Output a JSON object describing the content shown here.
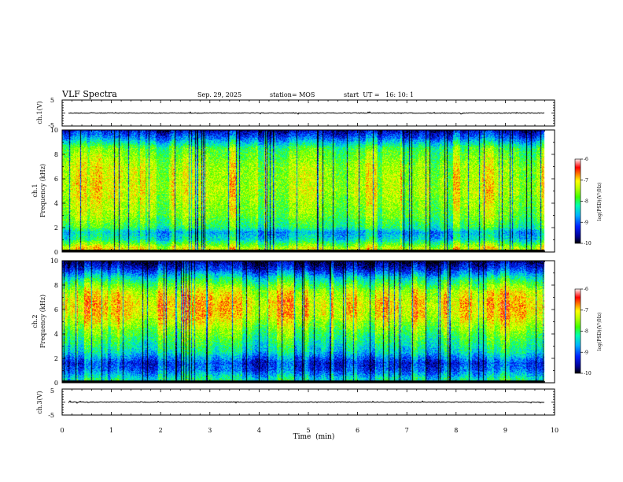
{
  "header": {
    "title": "VLF Spectra",
    "date": "Sep. 29, 2025",
    "station": "station= MOS",
    "start": "start  UT =   16: 10: 1"
  },
  "chart_data": [
    {
      "type": "line",
      "id": "ch1-waveform",
      "ylabel": "ch.1(V)",
      "ylim": [
        -5,
        5
      ],
      "yticks": [
        "5",
        "-5"
      ],
      "xlim": [
        0,
        10
      ],
      "description_values": {
        "x_end_min": 9.8,
        "mean_voltage": 0.0
      }
    },
    {
      "type": "heatmap",
      "id": "ch1-spectrogram",
      "ylabel_top": "ch.1",
      "ylabel": "Frequency  (kHz)",
      "ylim": [
        0,
        10
      ],
      "yticks": [
        "0",
        "2",
        "4",
        "6",
        "8",
        "10"
      ],
      "xlim": [
        0,
        10
      ],
      "data_x_end": 9.8,
      "colorbar": {
        "label": "log(PSD)(V²/Hz)",
        "range": [
          -10,
          -6
        ],
        "ticks": [
          "-6",
          "-7",
          "-8",
          "-9",
          "-10"
        ]
      },
      "intensity_profile_kHz_to_logPSD": [
        [
          0.3,
          -7.2
        ],
        [
          1.0,
          -8.3
        ],
        [
          1.6,
          -8.6
        ],
        [
          2.0,
          -8.0
        ],
        [
          3.0,
          -7.6
        ],
        [
          5.0,
          -7.3
        ],
        [
          7.0,
          -7.4
        ],
        [
          8.5,
          -7.8
        ],
        [
          9.3,
          -8.8
        ],
        [
          10.0,
          -9.5
        ]
      ]
    },
    {
      "type": "heatmap",
      "id": "ch2-spectrogram",
      "ylabel_top": "ch.2",
      "ylabel": "Frequency  (kHz)",
      "ylim": [
        0,
        10
      ],
      "yticks": [
        "0",
        "2",
        "4",
        "6",
        "8",
        "10"
      ],
      "xlim": [
        0,
        10
      ],
      "data_x_end": 9.8,
      "colorbar": {
        "label": "log(PSD)(V²/Hz)",
        "range": [
          -10,
          -6
        ],
        "ticks": [
          "-6",
          "-7",
          "-8",
          "-9",
          "-10"
        ]
      },
      "intensity_profile_kHz_to_logPSD": [
        [
          0.3,
          -8.3
        ],
        [
          1.0,
          -9.0
        ],
        [
          1.6,
          -9.2
        ],
        [
          2.5,
          -8.4
        ],
        [
          4.0,
          -7.8
        ],
        [
          5.5,
          -7.1
        ],
        [
          6.5,
          -7.0
        ],
        [
          7.5,
          -7.3
        ],
        [
          8.5,
          -8.2
        ],
        [
          9.3,
          -9.2
        ],
        [
          10.0,
          -9.8
        ]
      ]
    },
    {
      "type": "line",
      "id": "ch3-waveform",
      "ylabel": "ch.3(V)",
      "ylim": [
        -5,
        5
      ],
      "yticks": [
        "5",
        "-5"
      ],
      "xlim": [
        0,
        10
      ],
      "description_values": {
        "x_end_min": 9.8,
        "mean_voltage": 0.0
      }
    }
  ],
  "xaxis": {
    "label": "Time  (min)",
    "ticks": [
      "0",
      "1",
      "2",
      "3",
      "4",
      "5",
      "6",
      "7",
      "8",
      "9",
      "10"
    ]
  },
  "colors": {
    "colormap": [
      "#000080",
      "#0000ff",
      "#00a0ff",
      "#00ffff",
      "#00ff60",
      "#a0ff00",
      "#ffff00",
      "#ff8000",
      "#ff0000",
      "#ffe0e0"
    ]
  }
}
